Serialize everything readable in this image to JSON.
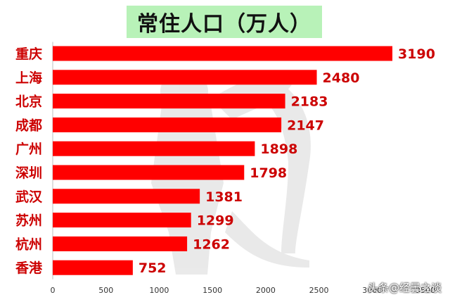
{
  "chart_data": {
    "type": "bar",
    "orientation": "horizontal",
    "title": "常住人口（万人）",
    "categories": [
      "重庆",
      "上海",
      "北京",
      "成都",
      "广州",
      "深圳",
      "武汉",
      "苏州",
      "杭州",
      "香港"
    ],
    "values": [
      3190,
      2480,
      2183,
      2147,
      1898,
      1798,
      1381,
      1299,
      1262,
      752
    ],
    "data_labels": [
      "3190",
      "2480",
      "2183",
      "2147",
      "1898",
      "1798",
      "1381",
      "1299",
      "1262",
      "752"
    ],
    "x_ticks": [
      "0",
      "500",
      "1000",
      "1500",
      "2000",
      "2500",
      "3000",
      "3500"
    ],
    "xlim": [
      0,
      3500
    ],
    "xlabel": "",
    "ylabel": "",
    "grid": false,
    "legend": "none",
    "bar_color": "#ff0000",
    "category_label_color": "#cc0000",
    "data_label_color": "#cc0000",
    "title_background": "#b8f2b8"
  },
  "credit": "头条@经曇之谈"
}
